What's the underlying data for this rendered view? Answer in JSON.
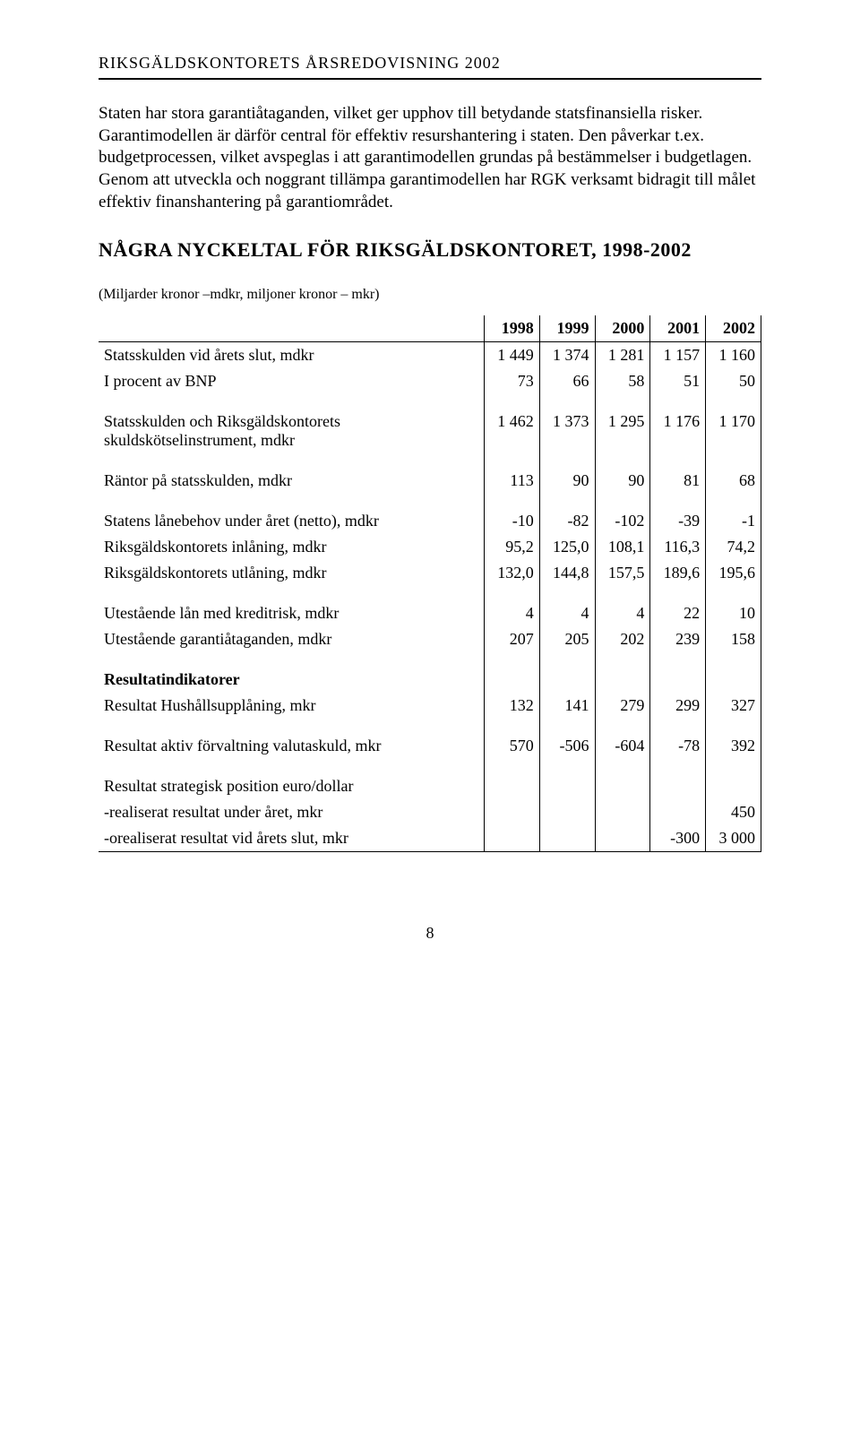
{
  "header": {
    "title": "RIKSGÄLDSKONTORETS ÅRSREDOVISNING 2002"
  },
  "paragraphs": {
    "p1": "Staten har stora garantiåtaganden, vilket ger upphov till betydande statsfinansiella risker. Garantimodellen är därför central för effektiv resurshantering i staten. Den påverkar t.ex. budgetprocessen, vilket avspeglas i att garantimodellen grundas på bestämmelser i budgetlagen. Genom att utveckla och noggrant tillämpa garantimodellen har RGK verksamt bidragit till målet effektiv finanshantering på garantiområdet."
  },
  "section_heading": "NÅGRA NYCKELTAL FÖR RIKSGÄLDSKONTORET, 1998-2002",
  "table": {
    "caption": "(Miljarder kronor –mdkr, miljoner kronor – mkr)",
    "columns": [
      "",
      "1998",
      "1999",
      "2000",
      "2001",
      "2002"
    ],
    "rows": [
      {
        "label": "Statsskulden vid årets slut, mdkr",
        "vals": [
          "1 449",
          "1 374",
          "1 281",
          "1 157",
          "1 160"
        ],
        "break": false
      },
      {
        "label": "I procent av BNP",
        "vals": [
          "73",
          "66",
          "58",
          "51",
          "50"
        ],
        "break": false
      },
      {
        "label": "Statsskulden och Riksgäldskontorets skuldskötselinstrument, mdkr",
        "vals": [
          "1 462",
          "1 373",
          "1 295",
          "1 176",
          "1 170"
        ],
        "break": true
      },
      {
        "label": "Räntor på statsskulden, mdkr",
        "vals": [
          "113",
          "90",
          "90",
          "81",
          "68"
        ],
        "break": true
      },
      {
        "label": "Statens lånebehov under året (netto), mdkr",
        "vals": [
          "-10",
          "-82",
          "-102",
          "-39",
          "-1"
        ],
        "break": true
      },
      {
        "label": "Riksgäldskontorets inlåning, mdkr",
        "vals": [
          "95,2",
          "125,0",
          "108,1",
          "116,3",
          "74,2"
        ],
        "break": false
      },
      {
        "label": "Riksgäldskontorets utlåning, mdkr",
        "vals": [
          "132,0",
          "144,8",
          "157,5",
          "189,6",
          "195,6"
        ],
        "break": false
      },
      {
        "label": "Utestående lån med kreditrisk, mdkr",
        "vals": [
          "4",
          "4",
          "4",
          "22",
          "10"
        ],
        "break": true
      },
      {
        "label": "Utestående garantiåtaganden, mdkr",
        "vals": [
          "207",
          "205",
          "202",
          "239",
          "158"
        ],
        "break": false
      },
      {
        "label": "Resultatindikatorer",
        "vals": [
          "",
          "",
          "",
          "",
          ""
        ],
        "break": true,
        "bold": true
      },
      {
        "label": "Resultat Hushållsupplåning, mkr",
        "vals": [
          "132",
          "141",
          "279",
          "299",
          "327"
        ],
        "break": false
      },
      {
        "label": "Resultat aktiv förvaltning valutaskuld, mkr",
        "vals": [
          "570",
          "-506",
          "-604",
          "-78",
          "392"
        ],
        "break": true
      },
      {
        "label": "Resultat strategisk position euro/dollar",
        "vals": [
          "",
          "",
          "",
          "",
          ""
        ],
        "break": true
      },
      {
        "label": " -realiserat resultat under året, mkr",
        "vals": [
          "",
          "",
          "",
          "",
          "450"
        ],
        "break": false
      },
      {
        "label": " -orealiserat resultat vid årets slut, mkr",
        "vals": [
          "",
          "",
          "",
          "-300",
          "3 000"
        ],
        "break": false,
        "last": true
      }
    ]
  },
  "page_number": "8",
  "style": {
    "background_color": "#ffffff",
    "text_color": "#000000",
    "rule_color": "#000000",
    "font_family": "Book Antiqua, Palatino, serif",
    "body_fontsize": 19,
    "heading_fontsize": 22,
    "table_fontsize": 18
  }
}
